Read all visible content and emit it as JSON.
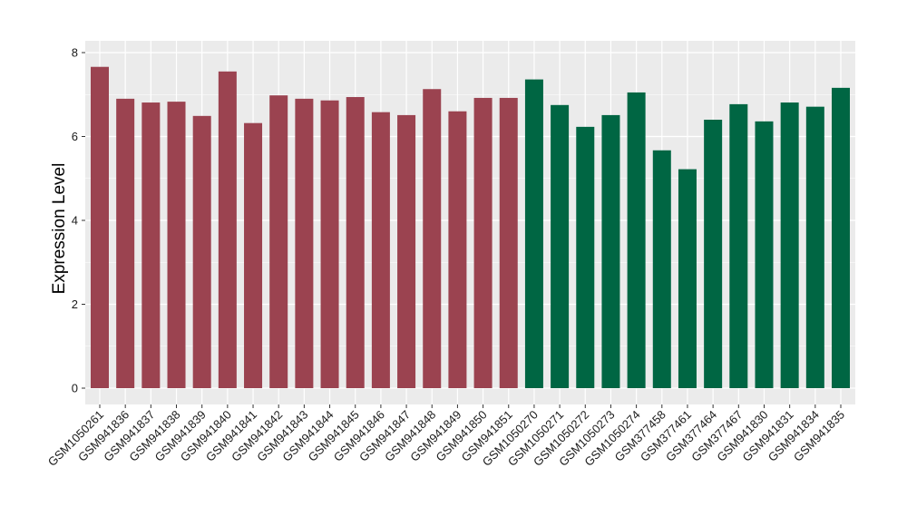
{
  "chart_data": {
    "type": "bar",
    "title": "",
    "xlabel": "",
    "ylabel": "Expression Level",
    "ylim": [
      0,
      8
    ],
    "yticks": [
      0,
      2,
      4,
      6,
      8
    ],
    "grid": true,
    "panel_background": "#ebebeb",
    "grid_color": "#ffffff",
    "categories": [
      "GSM1050261",
      "GSM941836",
      "GSM941837",
      "GSM941838",
      "GSM941839",
      "GSM941840",
      "GSM941841",
      "GSM941842",
      "GSM941843",
      "GSM941844",
      "GSM941845",
      "GSM941846",
      "GSM941847",
      "GSM941848",
      "GSM941849",
      "GSM941850",
      "GSM941851",
      "GSM1050270",
      "GSM1050271",
      "GSM1050272",
      "GSM1050273",
      "GSM1050274",
      "GSM377458",
      "GSM377461",
      "GSM377464",
      "GSM377467",
      "GSM941830",
      "GSM941831",
      "GSM941834",
      "GSM941835"
    ],
    "values": [
      7.66,
      6.9,
      6.81,
      6.83,
      6.49,
      7.55,
      6.32,
      6.98,
      6.9,
      6.86,
      6.94,
      6.58,
      6.51,
      7.13,
      6.6,
      6.92,
      6.92,
      7.36,
      6.75,
      6.23,
      6.51,
      7.05,
      5.67,
      5.22,
      6.4,
      6.77,
      6.36,
      6.81,
      6.71,
      7.16
    ],
    "bar_colors": [
      "#9b4350",
      "#9b4350",
      "#9b4350",
      "#9b4350",
      "#9b4350",
      "#9b4350",
      "#9b4350",
      "#9b4350",
      "#9b4350",
      "#9b4350",
      "#9b4350",
      "#9b4350",
      "#9b4350",
      "#9b4350",
      "#9b4350",
      "#9b4350",
      "#9b4350",
      "#006643",
      "#006643",
      "#006643",
      "#006643",
      "#006643",
      "#006643",
      "#006643",
      "#006643",
      "#006643",
      "#006643",
      "#006643",
      "#006643",
      "#006643"
    ]
  }
}
